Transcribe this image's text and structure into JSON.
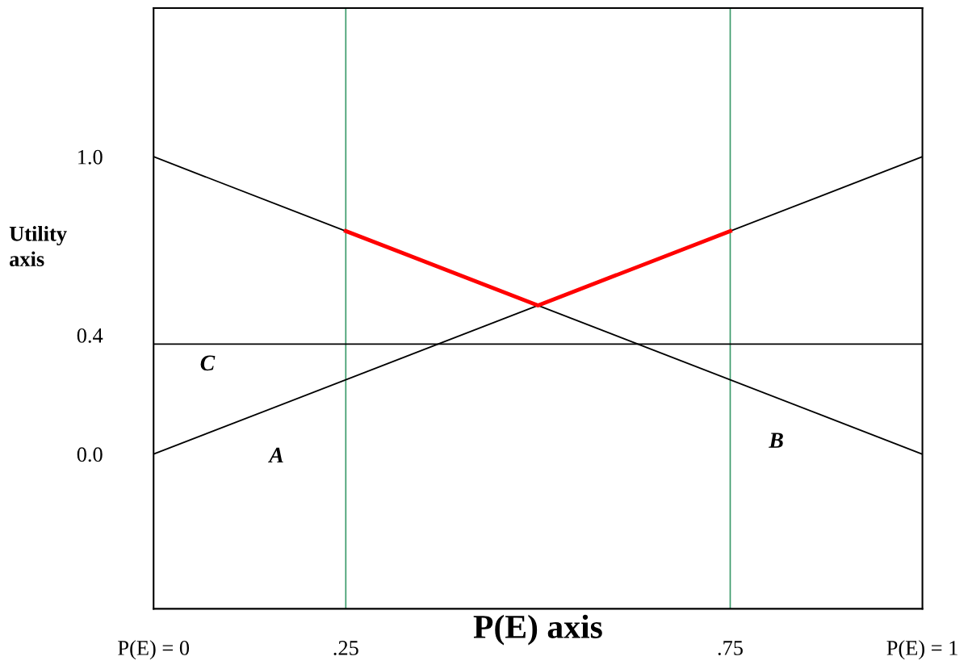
{
  "chart_data": {
    "type": "line",
    "xlabel": "P(E) axis",
    "ylabel": "Utility\naxis",
    "xlim": [
      0,
      1
    ],
    "ylim": [
      -0.52,
      1.5
    ],
    "xticks": [
      {
        "value": 0,
        "label": "P(E) = 0"
      },
      {
        "value": 0.25,
        "label": ".25"
      },
      {
        "value": 0.75,
        "label": ".75"
      },
      {
        "value": 1,
        "label": "P(E) = 1"
      }
    ],
    "yticks": [
      {
        "value": 0,
        "label": "0.0"
      },
      {
        "value": 0.4,
        "label": "0.4"
      },
      {
        "value": 1.0,
        "label": "1.0"
      }
    ],
    "series": [
      {
        "name": "A",
        "color": "#000000",
        "x": [
          0,
          1
        ],
        "values": [
          0,
          1.0
        ]
      },
      {
        "name": "B",
        "color": "#000000",
        "x": [
          0,
          1
        ],
        "values": [
          1.0,
          0
        ]
      },
      {
        "name": "C",
        "color": "#000000",
        "x": [
          0,
          1
        ],
        "values": [
          0.37,
          0.37
        ]
      },
      {
        "color": "#ff0000",
        "x": [
          0.25,
          0.5,
          0.75
        ],
        "values": [
          0.75,
          0.5,
          0.75
        ]
      }
    ],
    "ref_lines": [
      {
        "axis": "x",
        "value": 0.25,
        "color": "#3a9a6a"
      },
      {
        "axis": "x",
        "value": 0.75,
        "color": "#3a9a6a"
      }
    ],
    "grid": false,
    "legend": false,
    "marker": "none",
    "line_style": "solid"
  }
}
